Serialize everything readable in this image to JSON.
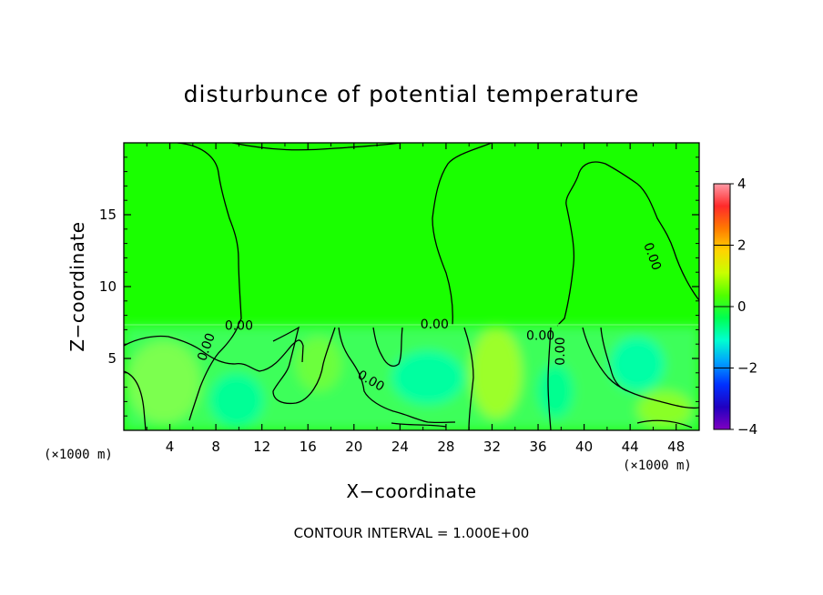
{
  "chart_data": {
    "type": "heatmap",
    "title": "disturbunce of potential temperature",
    "xlabel": "X−coordinate",
    "ylabel": "Z−coordinate",
    "x_unit": "(×1000 m)",
    "z_unit": "(×1000 m)",
    "xlim": [
      0,
      50
    ],
    "ylim": [
      0,
      20
    ],
    "x_ticks": [
      4,
      8,
      12,
      16,
      20,
      24,
      28,
      32,
      36,
      40,
      44,
      48
    ],
    "y_ticks": [
      5,
      10,
      15
    ],
    "colorbar": {
      "range": [
        -4,
        4
      ],
      "ticks": [
        4,
        2,
        0,
        -2,
        -4
      ],
      "tick_labels": [
        "4",
        "2",
        "0",
        "−2",
        "−4"
      ],
      "colors": [
        "#ff9aa6",
        "#ff2a2a",
        "#ff7a00",
        "#ffd400",
        "#c8ff00",
        "#50ff00",
        "#00ff50",
        "#00ffd0",
        "#00a0ff",
        "#0030ff",
        "#2000c0",
        "#8000c0"
      ]
    },
    "contour_label": "0.00",
    "contour_labels": [
      {
        "text": "0.00",
        "x": 10.0,
        "z": 7.0,
        "angle": 0
      },
      {
        "text": "0.00",
        "x": 7.5,
        "z": 5.7,
        "angle": -70
      },
      {
        "text": "0.00",
        "x": 21.3,
        "z": 3.2,
        "angle": 30
      },
      {
        "text": "0.00",
        "x": 27.0,
        "z": 7.1,
        "angle": 0
      },
      {
        "text": "0.00",
        "x": 36.2,
        "z": 6.3,
        "angle": 0
      },
      {
        "text": "0.00",
        "x": 38.3,
        "z": 5.5,
        "angle": -90
      },
      {
        "text": "0.00",
        "x": 45.6,
        "z": 12.0,
        "angle": 70
      }
    ],
    "contour_interval_text": "CONTOUR INTERVAL = 1.000E+00",
    "background_color": "#1aff00",
    "contour_color": "#000000"
  }
}
